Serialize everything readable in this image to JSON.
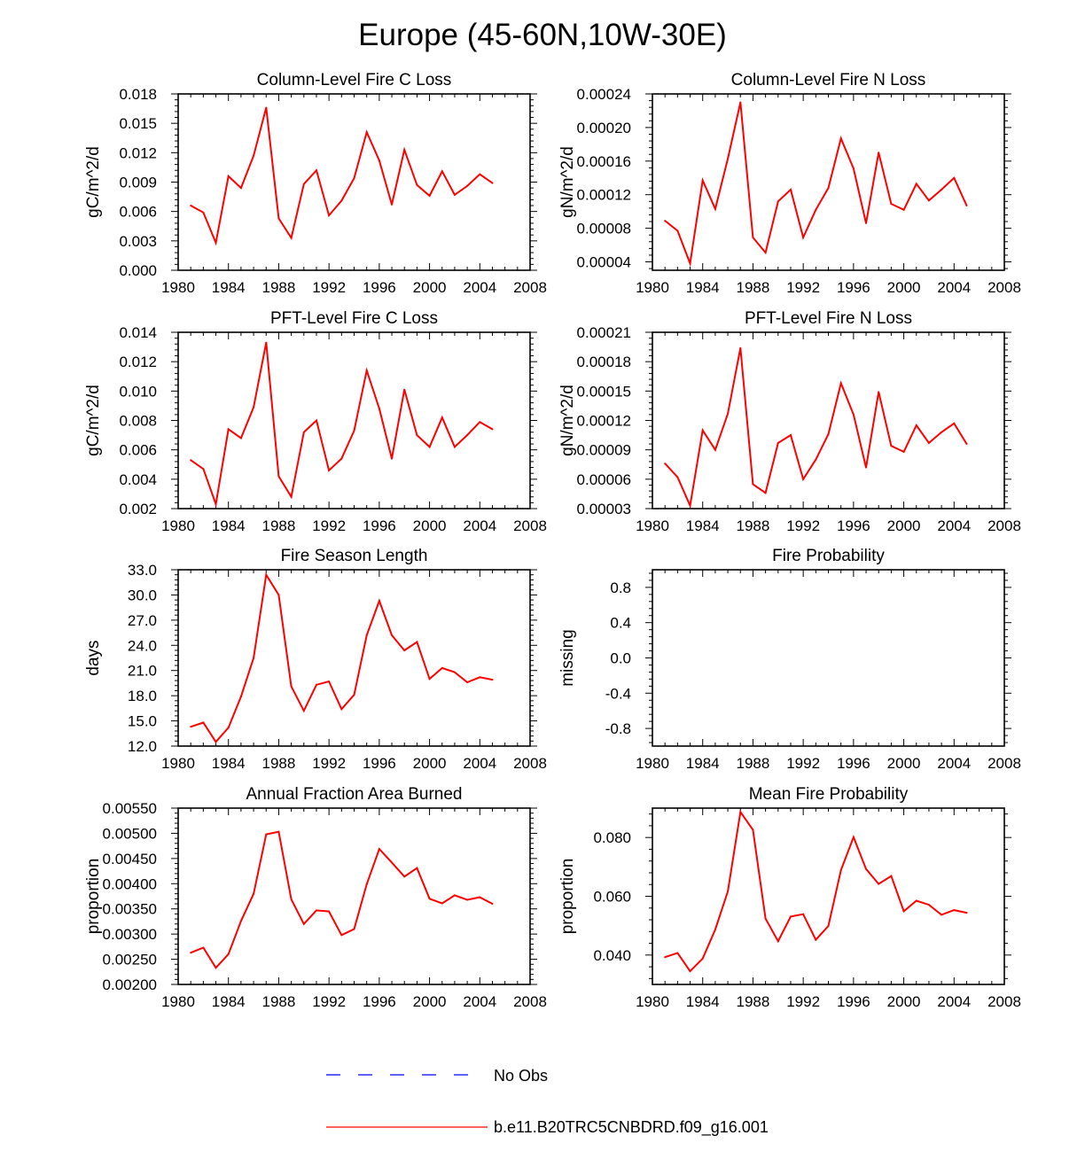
{
  "title": "Europe (45-60N,10W-30E)",
  "colors": {
    "model_line": "#ff0000",
    "obs_line": "#0000ff",
    "axis": "#000000"
  },
  "legend": {
    "obs_label": "No Obs",
    "model_label": "b.e11.B20TRC5CNBDRD.f09_g16.001"
  },
  "chart_data": [
    {
      "type": "line",
      "title": "Column-Level Fire C Loss",
      "ylabel": "gC/m^2/d",
      "xlim": [
        1980,
        2008
      ],
      "xticks": [
        "1980",
        "1984",
        "1988",
        "1992",
        "1996",
        "2000",
        "2004",
        "2008"
      ],
      "ylim": [
        0.0,
        0.018
      ],
      "yticks": [
        "0.000",
        "0.003",
        "0.006",
        "0.009",
        "0.012",
        "0.015",
        "0.018"
      ],
      "x": [
        1981,
        1982,
        1983,
        1984,
        1985,
        1986,
        1987,
        1988,
        1989,
        1990,
        1991,
        1992,
        1993,
        1994,
        1995,
        1996,
        1997,
        1998,
        1999,
        2000,
        2001,
        2002,
        2003,
        2004,
        2005
      ],
      "series": [
        {
          "name": "b.e11.B20TRC5CNBDRD.f09_g16.001",
          "values": [
            0.0066,
            0.0059,
            0.0028,
            0.0096,
            0.0084,
            0.0117,
            0.0166,
            0.0053,
            0.0033,
            0.0088,
            0.0102,
            0.0056,
            0.0071,
            0.0094,
            0.0141,
            0.0112,
            0.0067,
            0.0123,
            0.0087,
            0.0076,
            0.0101,
            0.0077,
            0.0086,
            0.0098,
            0.0089
          ]
        }
      ]
    },
    {
      "type": "line",
      "title": "Column-Level Fire N Loss",
      "ylabel": "gN/m^2/d",
      "xlim": [
        1980,
        2008
      ],
      "xticks": [
        "1980",
        "1984",
        "1988",
        "1992",
        "1996",
        "2000",
        "2004",
        "2008"
      ],
      "ylim": [
        3e-05,
        0.00024
      ],
      "yticks": [
        "0.00004",
        "0.00008",
        "0.00012",
        "0.00016",
        "0.00020",
        "0.00024"
      ],
      "x": [
        1981,
        1982,
        1983,
        1984,
        1985,
        1986,
        1987,
        1988,
        1989,
        1990,
        1991,
        1992,
        1993,
        1994,
        1995,
        1996,
        1997,
        1998,
        1999,
        2000,
        2001,
        2002,
        2003,
        2004,
        2005
      ],
      "series": [
        {
          "name": "b.e11.B20TRC5CNBDRD.f09_g16.001",
          "values": [
            8.9e-05,
            7.7e-05,
            3.8e-05,
            0.000137,
            0.000103,
            0.000163,
            0.00023,
            6.9e-05,
            5.1e-05,
            0.000112,
            0.000126,
            6.9e-05,
            0.000102,
            0.000128,
            0.000187,
            0.000151,
            8.6e-05,
            0.00017,
            0.000109,
            0.000102,
            0.000133,
            0.000113,
            0.000126,
            0.00014,
            0.000107
          ]
        }
      ]
    },
    {
      "type": "line",
      "title": "PFT-Level Fire C Loss",
      "ylabel": "gC/m^2/d",
      "xlim": [
        1980,
        2008
      ],
      "xticks": [
        "1980",
        "1984",
        "1988",
        "1992",
        "1996",
        "2000",
        "2004",
        "2008"
      ],
      "ylim": [
        0.002,
        0.014
      ],
      "yticks": [
        "0.002",
        "0.004",
        "0.006",
        "0.008",
        "0.010",
        "0.012",
        "0.014"
      ],
      "x": [
        1981,
        1982,
        1983,
        1984,
        1985,
        1986,
        1987,
        1988,
        1989,
        1990,
        1991,
        1992,
        1993,
        1994,
        1995,
        1996,
        1997,
        1998,
        1999,
        2000,
        2001,
        2002,
        2003,
        2004,
        2005
      ],
      "series": [
        {
          "name": "b.e11.B20TRC5CNBDRD.f09_g16.001",
          "values": [
            0.0053,
            0.0047,
            0.0023,
            0.0074,
            0.0068,
            0.0089,
            0.0133,
            0.0042,
            0.0028,
            0.0072,
            0.008,
            0.0046,
            0.0054,
            0.0073,
            0.0114,
            0.0088,
            0.0054,
            0.0101,
            0.007,
            0.0062,
            0.0082,
            0.0062,
            0.007,
            0.0079,
            0.0074
          ]
        }
      ]
    },
    {
      "type": "line",
      "title": "PFT-Level Fire N Loss",
      "ylabel": "gN/m^2/d",
      "xlim": [
        1980,
        2008
      ],
      "xticks": [
        "1980",
        "1984",
        "1988",
        "1992",
        "1996",
        "2000",
        "2004",
        "2008"
      ],
      "ylim": [
        3e-05,
        0.00021
      ],
      "yticks": [
        "0.00003",
        "0.00006",
        "0.00009",
        "0.00012",
        "0.00015",
        "0.00018",
        "0.00021"
      ],
      "x": [
        1981,
        1982,
        1983,
        1984,
        1985,
        1986,
        1987,
        1988,
        1989,
        1990,
        1991,
        1992,
        1993,
        1994,
        1995,
        1996,
        1997,
        1998,
        1999,
        2000,
        2001,
        2002,
        2003,
        2004,
        2005
      ],
      "series": [
        {
          "name": "b.e11.B20TRC5CNBDRD.f09_g16.001",
          "values": [
            7.6e-05,
            6.2e-05,
            3.3e-05,
            0.00011,
            9e-05,
            0.000127,
            0.000194,
            5.5e-05,
            4.6e-05,
            9.7e-05,
            0.000105,
            6e-05,
            8e-05,
            0.000106,
            0.000158,
            0.000126,
            7.2e-05,
            0.000149,
            9.4e-05,
            8.8e-05,
            0.000115,
            9.7e-05,
            0.000108,
            0.000117,
            9.6e-05
          ]
        }
      ]
    },
    {
      "type": "line",
      "title": "Fire Season Length",
      "ylabel": "days",
      "xlim": [
        1980,
        2008
      ],
      "xticks": [
        "1980",
        "1984",
        "1988",
        "1992",
        "1996",
        "2000",
        "2004",
        "2008"
      ],
      "ylim": [
        12.0,
        33.0
      ],
      "yticks": [
        "12.0",
        "15.0",
        "18.0",
        "21.0",
        "24.0",
        "27.0",
        "30.0",
        "33.0"
      ],
      "x": [
        1981,
        1982,
        1983,
        1984,
        1985,
        1986,
        1987,
        1988,
        1989,
        1990,
        1991,
        1992,
        1993,
        1994,
        1995,
        1996,
        1997,
        1998,
        1999,
        2000,
        2001,
        2002,
        2003,
        2004,
        2005
      ],
      "series": [
        {
          "name": "b.e11.B20TRC5CNBDRD.f09_g16.001",
          "values": [
            14.3,
            14.8,
            12.5,
            14.2,
            17.9,
            22.5,
            32.4,
            30.0,
            19.1,
            16.2,
            19.3,
            19.7,
            16.4,
            18.1,
            25.2,
            29.3,
            25.2,
            23.4,
            24.4,
            20.0,
            21.3,
            20.8,
            19.6,
            20.2,
            19.9
          ]
        }
      ]
    },
    {
      "type": "line",
      "title": "Fire Probability",
      "ylabel": "missing",
      "xlim": [
        1980,
        2008
      ],
      "xticks": [
        "1980",
        "1984",
        "1988",
        "1992",
        "1996",
        "2000",
        "2004",
        "2008"
      ],
      "ylim": [
        -1.0,
        1.0
      ],
      "yticks": [
        "-0.8",
        "-0.4",
        "0.0",
        "0.4",
        "0.8"
      ],
      "x": [],
      "series": []
    },
    {
      "type": "line",
      "title": "Annual Fraction Area Burned",
      "ylabel": "proportion",
      "xlim": [
        1980,
        2008
      ],
      "xticks": [
        "1980",
        "1984",
        "1988",
        "1992",
        "1996",
        "2000",
        "2004",
        "2008"
      ],
      "ylim": [
        0.002,
        0.0055
      ],
      "yticks": [
        "0.00200",
        "0.00250",
        "0.00300",
        "0.00350",
        "0.00400",
        "0.00450",
        "0.00500",
        "0.00550"
      ],
      "x": [
        1981,
        1982,
        1983,
        1984,
        1985,
        1986,
        1987,
        1988,
        1989,
        1990,
        1991,
        1992,
        1993,
        1994,
        1995,
        1996,
        1997,
        1998,
        1999,
        2000,
        2001,
        2002,
        2003,
        2004,
        2005
      ],
      "series": [
        {
          "name": "b.e11.B20TRC5CNBDRD.f09_g16.001",
          "values": [
            0.00263,
            0.00273,
            0.00233,
            0.0026,
            0.00326,
            0.0038,
            0.00498,
            0.00503,
            0.00369,
            0.0032,
            0.00347,
            0.00345,
            0.00298,
            0.0031,
            0.00399,
            0.00469,
            0.00442,
            0.00414,
            0.00431,
            0.0037,
            0.00361,
            0.00377,
            0.00368,
            0.00373,
            0.0036
          ]
        }
      ]
    },
    {
      "type": "line",
      "title": "Mean Fire Probability",
      "ylabel": "proportion",
      "xlim": [
        1980,
        2008
      ],
      "xticks": [
        "1980",
        "1984",
        "1988",
        "1992",
        "1996",
        "2000",
        "2004",
        "2008"
      ],
      "ylim": [
        0.03,
        0.09
      ],
      "yticks": [
        "0.040",
        "0.060",
        "0.080"
      ],
      "x": [
        1981,
        1982,
        1983,
        1984,
        1985,
        1986,
        1987,
        1988,
        1989,
        1990,
        1991,
        1992,
        1993,
        1994,
        1995,
        1996,
        1997,
        1998,
        1999,
        2000,
        2001,
        2002,
        2003,
        2004,
        2005
      ],
      "series": [
        {
          "name": "b.e11.B20TRC5CNBDRD.f09_g16.001",
          "values": [
            0.0393,
            0.0407,
            0.0345,
            0.0388,
            0.0487,
            0.0617,
            0.0887,
            0.0826,
            0.0524,
            0.0447,
            0.0531,
            0.0539,
            0.0452,
            0.0499,
            0.0689,
            0.0801,
            0.0693,
            0.0642,
            0.0669,
            0.0549,
            0.0585,
            0.0571,
            0.0537,
            0.0553,
            0.0544
          ]
        }
      ]
    }
  ]
}
